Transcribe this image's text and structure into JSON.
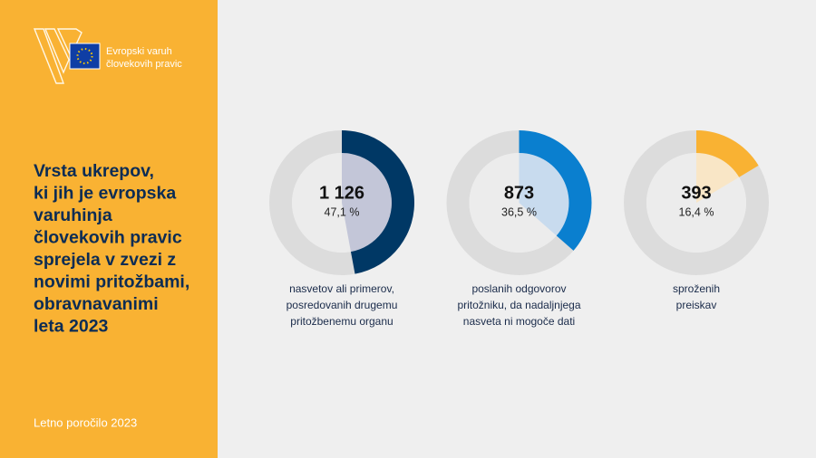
{
  "sidebar": {
    "logo_lines": [
      "Evropski varuh",
      "človekovih pravic"
    ],
    "title_lines": [
      "Vrsta ukrepov,",
      "ki jih je evropska",
      "varuhinja",
      "človekovih pravic",
      "sprejela v zvezi z",
      "novimi pritožbami,",
      "obravnavanimi",
      "leta 2023"
    ],
    "footer": "Letno poročilo 2023"
  },
  "chart_data": [
    {
      "type": "donut",
      "values": [
        1126
      ],
      "value_labels": [
        "1 126"
      ],
      "shares": [
        47.1
      ],
      "share_labels": [
        "47,1 %"
      ],
      "label_lines": [
        "nasvetov ali primerov,",
        "posredovanih drugemu",
        "pritožbenemu organu"
      ],
      "color": "#003865",
      "inner_color": "#c3c6d8"
    },
    {
      "type": "donut",
      "values": [
        873
      ],
      "value_labels": [
        "873"
      ],
      "shares": [
        36.5
      ],
      "share_labels": [
        "36,5 %"
      ],
      "label_lines": [
        "poslanih odgovorov",
        "pritožniku, da nadaljnjega",
        "nasveta ni mogoče dati"
      ],
      "color": "#0a7fcf",
      "inner_color": "#c8dbee"
    },
    {
      "type": "donut",
      "values": [
        393
      ],
      "value_labels": [
        "393"
      ],
      "shares": [
        16.4
      ],
      "share_labels": [
        "16,4 %"
      ],
      "label_lines": [
        "sproženih",
        "preiskav"
      ],
      "color": "#f9b233",
      "inner_color": "#f9e6c6"
    }
  ]
}
